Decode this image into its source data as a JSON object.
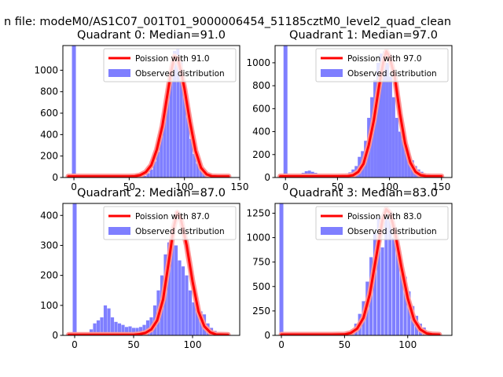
{
  "figure_title": "n file: modeM0/AS1C07_001T01_9000006454_51185cztM0_level2_quad_clean",
  "colors": {
    "hist": "#7f7fff",
    "line": "#ff0000",
    "line_halo": "#ff9494"
  },
  "chart_data": [
    {
      "type": "bar",
      "title": "Quadrant 0: Median=91.0",
      "xlim": [
        -10,
        150
      ],
      "ylim": [
        0,
        1230
      ],
      "xticks": [
        0,
        50,
        100,
        150
      ],
      "yticks": [
        0,
        200,
        400,
        600,
        800,
        1000
      ],
      "legend": [
        "Poission with 91.0",
        "Observed distribution"
      ],
      "legend_position": "upper-right",
      "bin_width": 2.8,
      "spike": {
        "x": 0,
        "value": 1230
      },
      "hist": {
        "x": [
          58,
          61,
          64,
          67,
          70,
          73,
          76,
          79,
          82,
          85,
          88,
          91,
          94,
          97,
          100,
          103,
          106,
          109,
          112,
          115,
          118,
          121,
          124,
          127,
          130
        ],
        "values": [
          5,
          10,
          15,
          40,
          75,
          150,
          240,
          420,
          600,
          820,
          1000,
          1180,
          1200,
          1080,
          830,
          560,
          360,
          220,
          130,
          75,
          40,
          20,
          10,
          5,
          3
        ]
      },
      "poisson": {
        "x": [
          -5,
          40,
          50,
          55,
          60,
          65,
          70,
          75,
          80,
          85,
          88,
          91,
          94,
          97,
          100,
          105,
          110,
          115,
          120,
          125,
          130,
          135,
          140
        ],
        "values": [
          10,
          10,
          10,
          12,
          22,
          50,
          115,
          260,
          480,
          800,
          990,
          1130,
          1110,
          980,
          830,
          520,
          250,
          90,
          30,
          12,
          10,
          10,
          10
        ]
      }
    },
    {
      "type": "bar",
      "title": "Quadrant 1: Median=97.0",
      "xlim": [
        -10,
        160
      ],
      "ylim": [
        0,
        1150
      ],
      "xticks": [
        0,
        50,
        100,
        150
      ],
      "yticks": [
        0,
        200,
        400,
        600,
        800,
        1000
      ],
      "legend": [
        "Poission with 97.0",
        "Observed distribution"
      ],
      "legend_position": "upper-right",
      "bin_width": 3,
      "spike": {
        "x": 0,
        "value": 1150
      },
      "hist": {
        "x": [
          8,
          11,
          14,
          17,
          20,
          23,
          26,
          29,
          32,
          35,
          38,
          41,
          44,
          47,
          50,
          53,
          56,
          59,
          62,
          65,
          68,
          71,
          74,
          77,
          80,
          83,
          86,
          89,
          92,
          95,
          98,
          101,
          104,
          107,
          110,
          113,
          116,
          119,
          122,
          125,
          128,
          131,
          134,
          137,
          140,
          143,
          146,
          149
        ],
        "values": [
          5,
          10,
          25,
          40,
          55,
          60,
          50,
          40,
          30,
          20,
          15,
          15,
          10,
          10,
          12,
          25,
          30,
          35,
          45,
          70,
          100,
          180,
          230,
          320,
          520,
          700,
          850,
          1000,
          1080,
          1100,
          1000,
          880,
          700,
          520,
          400,
          330,
          260,
          200,
          150,
          100,
          70,
          50,
          35,
          25,
          20,
          15,
          10,
          5
        ]
      },
      "poisson": {
        "x": [
          -5,
          50,
          60,
          65,
          70,
          75,
          80,
          85,
          90,
          94,
          97,
          100,
          105,
          110,
          115,
          120,
          125,
          130,
          135,
          140,
          150
        ],
        "values": [
          10,
          10,
          12,
          20,
          50,
          120,
          280,
          500,
          800,
          1000,
          1100,
          1050,
          880,
          560,
          300,
          130,
          50,
          20,
          12,
          10,
          10
        ]
      }
    },
    {
      "type": "bar",
      "title": "Quadrant 2: Median=87.0",
      "xlim": [
        -10,
        140
      ],
      "ylim": [
        0,
        440
      ],
      "xticks": [
        0,
        50,
        100
      ],
      "yticks": [
        0,
        100,
        200,
        300,
        400
      ],
      "legend": [
        "Poission with 87.0",
        "Observed distribution"
      ],
      "legend_position": "upper-right",
      "bin_width": 2.8,
      "spike": {
        "x": 0,
        "value": 440
      },
      "hist": {
        "x": [
          8,
          11,
          14,
          17,
          20,
          23,
          26,
          29,
          32,
          35,
          38,
          41,
          44,
          47,
          50,
          53,
          56,
          59,
          62,
          65,
          68,
          71,
          74,
          77,
          80,
          83,
          86,
          89,
          92,
          95,
          98,
          101,
          104,
          107,
          110,
          113,
          116,
          119,
          122,
          125,
          128,
          131
        ],
        "values": [
          5,
          10,
          20,
          40,
          50,
          60,
          100,
          90,
          60,
          45,
          40,
          35,
          28,
          30,
          25,
          25,
          28,
          35,
          50,
          60,
          100,
          150,
          200,
          270,
          310,
          330,
          300,
          250,
          230,
          200,
          150,
          110,
          90,
          80,
          70,
          40,
          25,
          15,
          8,
          5,
          3,
          2
        ]
      },
      "poisson": {
        "x": [
          -5,
          50,
          55,
          60,
          65,
          70,
          75,
          80,
          84,
          87,
          90,
          95,
          100,
          105,
          110,
          115,
          120,
          130
        ],
        "values": [
          2,
          2,
          4,
          8,
          20,
          50,
          120,
          250,
          360,
          410,
          390,
          300,
          180,
          80,
          30,
          10,
          3,
          2
        ]
      }
    },
    {
      "type": "bar",
      "title": "Quadrant 3: Median=83.0",
      "xlim": [
        -5,
        135
      ],
      "ylim": [
        0,
        1350
      ],
      "xticks": [
        0,
        50,
        100
      ],
      "yticks": [
        0,
        250,
        500,
        750,
        1000,
        1250
      ],
      "legend": [
        "Poission with 83.0",
        "Observed distribution"
      ],
      "legend_position": "upper-right",
      "bin_width": 2.6,
      "spike": {
        "x": 0,
        "value": 1350
      },
      "hist": {
        "x": [
          20,
          23,
          26,
          29,
          32,
          35,
          38,
          41,
          44,
          47,
          50,
          53,
          56,
          59,
          62,
          65,
          68,
          71,
          74,
          77,
          80,
          83,
          86,
          89,
          92,
          95,
          98,
          101,
          104,
          107,
          110,
          113,
          116,
          119,
          122,
          125
        ],
        "values": [
          20,
          25,
          30,
          20,
          18,
          15,
          15,
          12,
          12,
          15,
          25,
          40,
          60,
          120,
          220,
          350,
          550,
          800,
          1050,
          1200,
          900,
          1200,
          1250,
          1000,
          850,
          700,
          600,
          450,
          300,
          200,
          120,
          80,
          40,
          20,
          10,
          5
        ]
      },
      "poisson": {
        "x": [
          0,
          40,
          50,
          55,
          60,
          65,
          70,
          75,
          80,
          83,
          86,
          90,
          95,
          100,
          105,
          110,
          115,
          120,
          125
        ],
        "values": [
          8,
          8,
          10,
          25,
          70,
          180,
          420,
          800,
          1180,
          1290,
          1250,
          1050,
          700,
          380,
          160,
          60,
          20,
          10,
          8
        ]
      }
    }
  ]
}
